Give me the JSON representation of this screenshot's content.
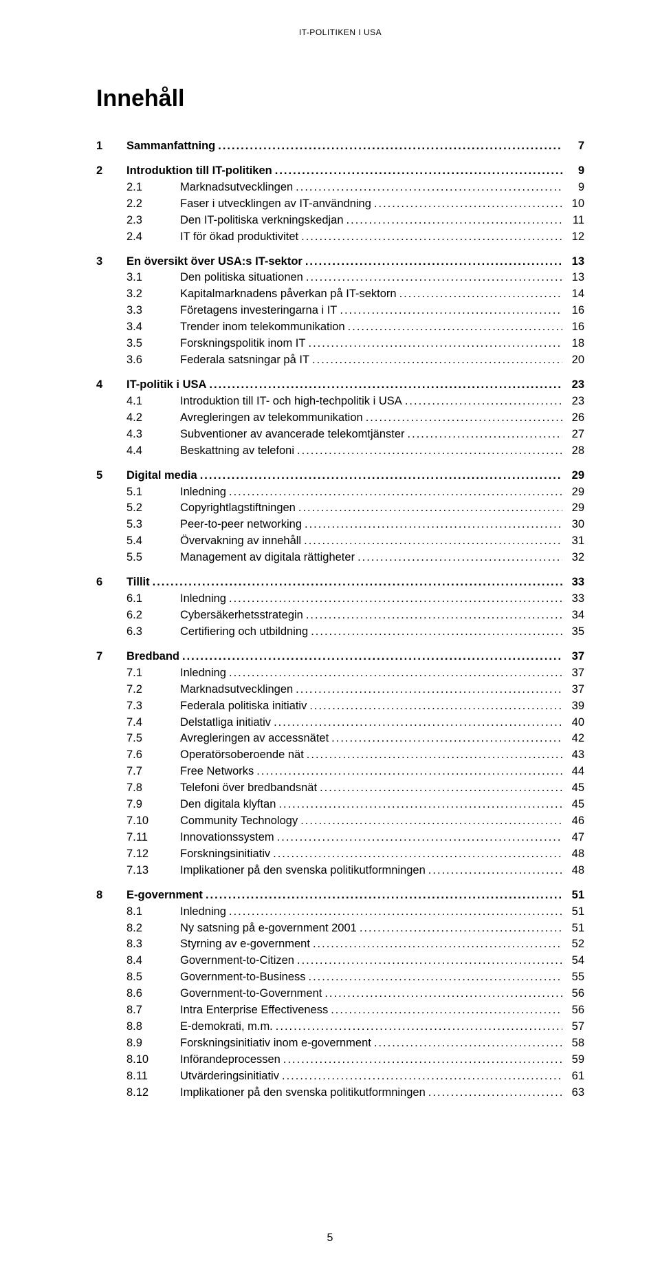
{
  "running_head": "IT-POLITIKEN I USA",
  "title": "Innehåll",
  "footer_page": "5",
  "toc": [
    {
      "num": "1",
      "label": "Sammanfattning",
      "page": "7",
      "sections": []
    },
    {
      "num": "2",
      "label": "Introduktion till IT-politiken",
      "page": "9",
      "sections": [
        {
          "num": "2.1",
          "label": "Marknadsutvecklingen",
          "page": "9"
        },
        {
          "num": "2.2",
          "label": "Faser i utvecklingen av IT-användning",
          "page": "10"
        },
        {
          "num": "2.3",
          "label": "Den IT-politiska verkningskedjan",
          "page": "11"
        },
        {
          "num": "2.4",
          "label": "IT för ökad produktivitet",
          "page": "12"
        }
      ]
    },
    {
      "num": "3",
      "label": "En översikt över USA:s IT-sektor",
      "page": "13",
      "sections": [
        {
          "num": "3.1",
          "label": "Den politiska situationen",
          "page": "13"
        },
        {
          "num": "3.2",
          "label": "Kapitalmarknadens påverkan på IT-sektorn",
          "page": "14"
        },
        {
          "num": "3.3",
          "label": "Företagens investeringarna i IT",
          "page": "16"
        },
        {
          "num": "3.4",
          "label": "Trender inom telekommunikation",
          "page": "16"
        },
        {
          "num": "3.5",
          "label": "Forskningspolitik inom IT",
          "page": "18"
        },
        {
          "num": "3.6",
          "label": "Federala satsningar på IT",
          "page": "20"
        }
      ]
    },
    {
      "num": "4",
      "label": "IT-politik i USA",
      "page": "23",
      "sections": [
        {
          "num": "4.1",
          "label": "Introduktion till IT- och high-techpolitik i USA",
          "page": "23"
        },
        {
          "num": "4.2",
          "label": "Avregleringen av telekommunikation",
          "page": "26"
        },
        {
          "num": "4.3",
          "label": "Subventioner av avancerade telekomtjänster",
          "page": "27"
        },
        {
          "num": "4.4",
          "label": "Beskattning av telefoni",
          "page": "28"
        }
      ]
    },
    {
      "num": "5",
      "label": "Digital media",
      "page": "29",
      "sections": [
        {
          "num": "5.1",
          "label": "Inledning",
          "page": "29"
        },
        {
          "num": "5.2",
          "label": "Copyrightlagstiftningen",
          "page": "29"
        },
        {
          "num": "5.3",
          "label": "Peer-to-peer networking",
          "page": "30"
        },
        {
          "num": "5.4",
          "label": "Övervakning av innehåll",
          "page": "31"
        },
        {
          "num": "5.5",
          "label": "Management av digitala rättigheter",
          "page": "32"
        }
      ]
    },
    {
      "num": "6",
      "label": "Tillit",
      "page": "33",
      "sections": [
        {
          "num": "6.1",
          "label": "Inledning",
          "page": "33"
        },
        {
          "num": "6.2",
          "label": "Cybersäkerhetsstrategin",
          "page": "34"
        },
        {
          "num": "6.3",
          "label": "Certifiering och utbildning",
          "page": "35"
        }
      ]
    },
    {
      "num": "7",
      "label": "Bredband",
      "page": "37",
      "sections": [
        {
          "num": "7.1",
          "label": "Inledning",
          "page": "37"
        },
        {
          "num": "7.2",
          "label": "Marknadsutvecklingen",
          "page": "37"
        },
        {
          "num": "7.3",
          "label": "Federala politiska initiativ",
          "page": "39"
        },
        {
          "num": "7.4",
          "label": "Delstatliga initiativ",
          "page": "40"
        },
        {
          "num": "7.5",
          "label": "Avregleringen av accessnätet",
          "page": "42"
        },
        {
          "num": "7.6",
          "label": "Operatörsoberoende nät",
          "page": "43"
        },
        {
          "num": "7.7",
          "label": "Free Networks",
          "page": "44"
        },
        {
          "num": "7.8",
          "label": "Telefoni över bredbandsnät",
          "page": "45"
        },
        {
          "num": "7.9",
          "label": "Den digitala klyftan",
          "page": "45"
        },
        {
          "num": "7.10",
          "label": "Community Technology",
          "page": "46"
        },
        {
          "num": "7.11",
          "label": "Innovationssystem",
          "page": "47"
        },
        {
          "num": "7.12",
          "label": "Forskningsinitiativ",
          "page": "48"
        },
        {
          "num": "7.13",
          "label": "Implikationer på den svenska politikutformningen",
          "page": "48"
        }
      ]
    },
    {
      "num": "8",
      "label": "E-government",
      "page": "51",
      "sections": [
        {
          "num": "8.1",
          "label": "Inledning",
          "page": "51"
        },
        {
          "num": "8.2",
          "label": "Ny satsning på e-government 2001",
          "page": "51"
        },
        {
          "num": "8.3",
          "label": "Styrning av e-government",
          "page": "52"
        },
        {
          "num": "8.4",
          "label": "Government-to-Citizen",
          "page": "54"
        },
        {
          "num": "8.5",
          "label": "Government-to-Business",
          "page": "55"
        },
        {
          "num": "8.6",
          "label": "Government-to-Government",
          "page": "56"
        },
        {
          "num": "8.7",
          "label": "Intra Enterprise Effectiveness",
          "page": "56"
        },
        {
          "num": "8.8",
          "label": "E-demokrati, m.m.",
          "page": "57"
        },
        {
          "num": "8.9",
          "label": "Forskningsinitiativ inom e-government",
          "page": "58"
        },
        {
          "num": "8.10",
          "label": "Införandeprocessen",
          "page": "59"
        },
        {
          "num": "8.11",
          "label": "Utvärderingsinitiativ",
          "page": "61"
        },
        {
          "num": "8.12",
          "label": "Implikationer på den svenska politikutformningen",
          "page": "63"
        }
      ]
    }
  ]
}
